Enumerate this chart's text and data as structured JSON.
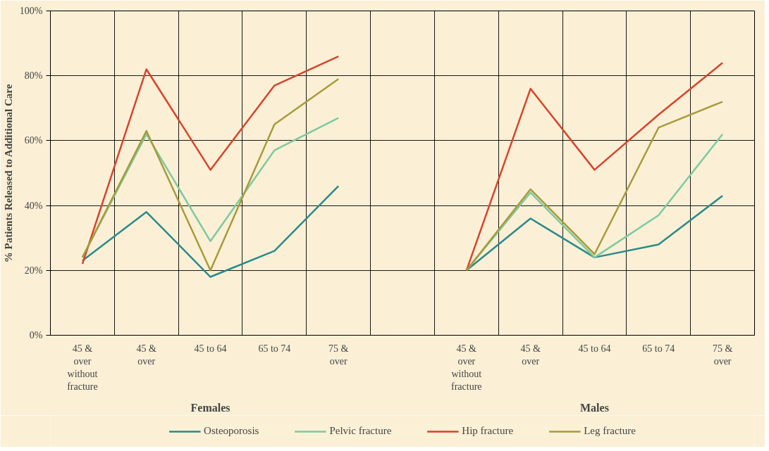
{
  "chart_data": {
    "type": "line",
    "ylabel": "% Patients Released to Additional Care",
    "categories": [
      "45 & over without fracture",
      "45 & over",
      "45 to 64",
      "65 to 74",
      "75 & over",
      null,
      "45 & over without fracture",
      "45 & over",
      "45 to 64",
      "65 to 74",
      "75 & over"
    ],
    "annotations": [
      "Females",
      "Males"
    ],
    "series": [
      {
        "name": "Osteoporosis",
        "color": "#2a8a8a",
        "values": [
          23,
          38,
          18,
          26,
          46,
          null,
          20,
          36,
          24,
          28,
          43
        ]
      },
      {
        "name": "Pelvic fracture",
        "color": "#7ccaa0",
        "values": [
          24,
          62,
          29,
          57,
          67,
          null,
          20,
          44,
          24,
          37,
          62
        ]
      },
      {
        "name": "Hip fracture",
        "color": "#d9432b",
        "values": [
          22,
          82,
          51,
          77,
          86,
          null,
          20,
          76,
          51,
          68,
          84
        ]
      },
      {
        "name": "Leg fracture",
        "color": "#a89a3a",
        "values": [
          24,
          63,
          20,
          65,
          79,
          null,
          20,
          45,
          25,
          64,
          72
        ]
      }
    ],
    "ylim": [
      0,
      100
    ],
    "yticks": [
      {
        "value": 0,
        "label": "0%"
      },
      {
        "value": 20,
        "label": "20%"
      },
      {
        "value": 40,
        "label": "40%"
      },
      {
        "value": 60,
        "label": "60%"
      },
      {
        "value": 80,
        "label": "80%"
      },
      {
        "value": 100,
        "label": "100%"
      }
    ],
    "grid": true,
    "legend": "bottom",
    "line_style": "solid"
  }
}
